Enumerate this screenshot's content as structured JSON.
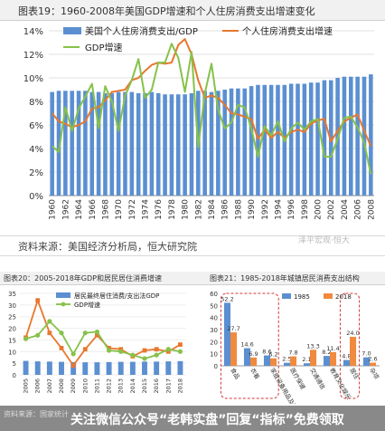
{
  "main_title": "图表19：1960-2008年美国GDP增速和个人住房消费支出增速变化",
  "source_text": "资料来源：美国经济分析局，恒大研究院",
  "watermark": "泽平宏观·恒大",
  "left_small_title": "图表20：2005-2018年GDP和居民居住消费增速",
  "right_small_title": "图表21：1985-2018年城镇居民消费支出结构",
  "footer": {
    "source": "资料来源：国家统计",
    "text": "关注微信公众号“老韩实盘”回复“指标”免费领取"
  },
  "colors": {
    "bar_blue": "#5b8fd1",
    "orange": "#e8772e",
    "green": "#86c24a",
    "bar_1985": "#5b8fd1",
    "bar_2018": "#f08a3e"
  },
  "chart_data": [
    {
      "type": "bar",
      "title": "图表19：1960-2008年美国GDP增速和个人住房消费支出增速变化",
      "x": [
        1960,
        1961,
        1962,
        1963,
        1964,
        1965,
        1966,
        1967,
        1968,
        1969,
        1970,
        1971,
        1972,
        1973,
        1974,
        1975,
        1976,
        1977,
        1978,
        1979,
        1980,
        1981,
        1982,
        1983,
        1984,
        1985,
        1986,
        1987,
        1988,
        1989,
        1990,
        1991,
        1992,
        1993,
        1994,
        1995,
        1996,
        1997,
        1998,
        1999,
        2000,
        2001,
        2002,
        2003,
        2004,
        2005,
        2006,
        2007,
        2008
      ],
      "x_tick_labels": [
        "1960",
        "1962",
        "1964",
        "1966",
        "1968",
        "1970",
        "1972",
        "1974",
        "1976",
        "1978",
        "1980",
        "1982",
        "1984",
        "1986",
        "1988",
        "1990",
        "1992",
        "1994",
        "1996",
        "1998",
        "2000",
        "2002",
        "2004",
        "2006",
        "2008"
      ],
      "ylim": [
        0,
        14
      ],
      "y_ticks": [
        "0%",
        "2%",
        "4%",
        "6%",
        "8%",
        "10%",
        "12%",
        "14%"
      ],
      "series": [
        {
          "name": "美国个人住房消费支出/GDP",
          "values": [
            8.8,
            8.9,
            8.9,
            8.9,
            8.9,
            8.9,
            8.8,
            8.8,
            8.7,
            8.7,
            8.8,
            8.8,
            8.8,
            8.7,
            8.7,
            8.8,
            8.7,
            8.6,
            8.6,
            8.6,
            8.6,
            8.7,
            8.9,
            8.9,
            8.8,
            8.9,
            9.0,
            9.1,
            9.1,
            9.1,
            9.3,
            9.4,
            9.4,
            9.4,
            9.4,
            9.4,
            9.5,
            9.5,
            9.5,
            9.6,
            9.6,
            9.8,
            9.8,
            10.0,
            10.1,
            10.1,
            10.1,
            10.1,
            10.3
          ]
        },
        {
          "name": "个人住房消费支出增速",
          "values": [
            7.0,
            6.3,
            6.1,
            5.8,
            6.0,
            6.3,
            7.4,
            7.5,
            8.1,
            8.8,
            8.9,
            9.0,
            9.8,
            10.0,
            10.6,
            11.1,
            11.3,
            11.2,
            11.3,
            12.8,
            13.3,
            12.0,
            9.8,
            8.3,
            8.5,
            8.3,
            7.7,
            7.0,
            6.9,
            6.7,
            6.5,
            4.8,
            5.6,
            4.9,
            5.4,
            4.9,
            5.4,
            5.6,
            5.4,
            6.1,
            6.4,
            6.5,
            4.6,
            5.5,
            6.3,
            6.6,
            6.9,
            5.5,
            4.2
          ]
        },
        {
          "name": "GDP增速",
          "values": [
            4.2,
            3.7,
            7.5,
            5.5,
            7.4,
            8.4,
            9.5,
            5.7,
            9.3,
            8.0,
            5.5,
            8.5,
            9.8,
            11.6,
            8.3,
            9.0,
            11.3,
            11.3,
            12.9,
            11.7,
            8.8,
            12.2,
            4.1,
            8.7,
            11.2,
            7.3,
            5.7,
            6.2,
            7.7,
            7.5,
            5.7,
            3.3,
            5.9,
            5.1,
            6.3,
            4.6,
            5.7,
            6.2,
            5.6,
            6.3,
            6.5,
            3.3,
            3.3,
            4.8,
            6.6,
            6.7,
            5.8,
            4.5,
            1.8
          ]
        }
      ]
    },
    {
      "type": "line",
      "title": "图表20：2005-2018年GDP和居民居住消费增速",
      "categories": [
        "2005",
        "2006",
        "2007",
        "2008",
        "2009",
        "2010",
        "2011",
        "2012",
        "2013",
        "2014",
        "2015",
        "2016",
        "2017",
        "2018"
      ],
      "ylim": [
        0,
        35
      ],
      "y_ticks": [
        "0",
        "5",
        "10",
        "15",
        "20",
        "25",
        "30",
        "35"
      ],
      "series": [
        {
          "name": "居民最终居住消费/支出法GDP",
          "values": [
            6.0,
            5.8,
            5.7,
            5.6,
            5.5,
            5.4,
            5.4,
            5.5,
            5.6,
            5.6,
            5.7,
            5.7,
            5.8,
            5.9
          ]
        },
        {
          "name": "",
          "values": [
            16.0,
            32.0,
            18.0,
            11.5,
            4.0,
            11.0,
            17.0,
            11.5,
            11.0,
            8.0,
            10.5,
            11.0,
            10.0,
            13.0
          ]
        },
        {
          "name": "GDP增速",
          "values": [
            15.5,
            17.0,
            23.0,
            18.0,
            9.0,
            18.0,
            18.5,
            10.5,
            10.0,
            8.5,
            7.0,
            8.5,
            11.0,
            10.0
          ]
        }
      ]
    },
    {
      "type": "bar",
      "title": "图表21：1985-2018年城镇居民消费支出结构",
      "categories": [
        "食品",
        "衣着",
        "家庭设备用品及服务",
        "医疗保健",
        "交通通信",
        "教育文化娱乐",
        "居住",
        "杂项"
      ],
      "ylim": [
        0,
        60
      ],
      "y_ticks": [
        "0",
        "10",
        "20",
        "30",
        "40",
        "50",
        "60"
      ],
      "series": [
        {
          "name": "1985",
          "values": [
            52.2,
            14.6,
            8.6,
            2.5,
            2.1,
            8.2,
            4.8,
            7.0
          ]
        },
        {
          "name": "2018",
          "values": [
            27.7,
            6.9,
            6.2,
            7.8,
            13.3,
            11.4,
            24.0,
            2.6
          ]
        }
      ],
      "data_labels_1985": [
        "52.2",
        "14.6",
        "8.6",
        "2.5",
        "2.1",
        "8.2",
        "4.8",
        "7.0"
      ],
      "data_labels_2018": [
        "27.7",
        "6.9",
        "6.2",
        "7.8",
        "13.3",
        "11.4",
        "24.0",
        "2.6"
      ]
    }
  ]
}
